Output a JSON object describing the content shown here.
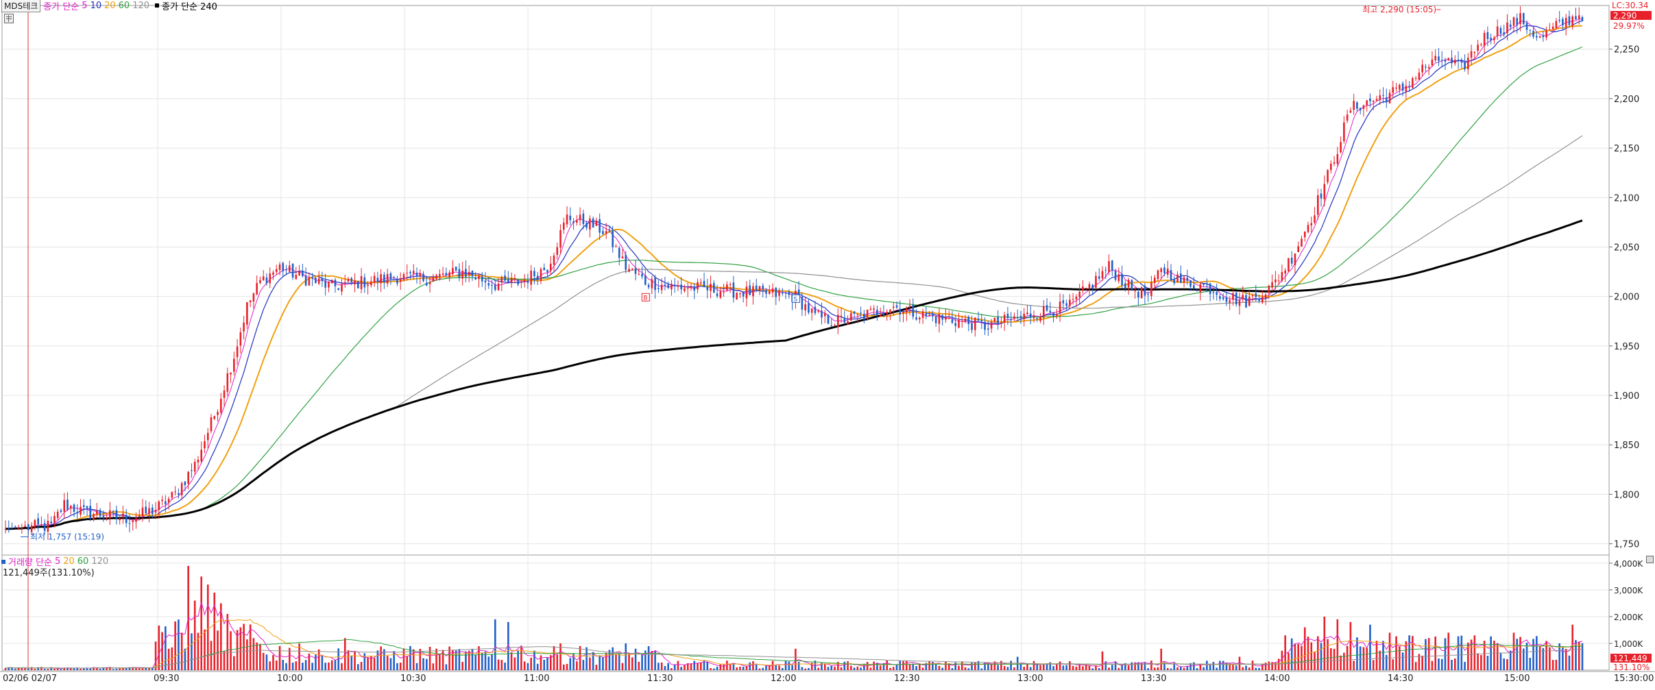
{
  "stock_name": "MDS테크",
  "price_legend": {
    "label": "종가 단순",
    "periods": [
      "5",
      "10",
      "20",
      "60",
      "120"
    ],
    "long_label": "종가 단순 240"
  },
  "volume_legend": {
    "label": "거래량 단순",
    "periods": [
      "5",
      "20",
      "60",
      "120"
    ],
    "current": "121,449주(131.10%)"
  },
  "top_right": {
    "lc": "LC:30.34",
    "price_badge": "2,290",
    "pct": "29.97%"
  },
  "annotations": {
    "high": "최고 2,290 (15:05)",
    "low": "최저 1,757 (15:19)",
    "marker_b": "B",
    "marker_s": "S"
  },
  "volume_right": {
    "badge": "121,449",
    "pct": "131.10%"
  },
  "colors": {
    "up": "#e8202a",
    "down": "#1f5fc8",
    "ma5": "#e020c8",
    "ma10": "#2030c0",
    "ma20": "#f0a010",
    "ma60": "#30a040",
    "ma120": "#909090",
    "ma240": "#000000"
  },
  "chart_data": [
    {
      "type": "candlestick",
      "title": "",
      "x": [
        "02/06 02/07",
        "09:30",
        "10:00",
        "10:30",
        "11:00",
        "11:30",
        "12:00",
        "12:30",
        "13:00",
        "13:30",
        "14:00",
        "14:30",
        "15:00",
        "15:30:00"
      ],
      "y_ticks": [
        "1,750",
        "1,800",
        "1,850",
        "1,900",
        "1,950",
        "2,000",
        "2,050",
        "2,100",
        "2,150",
        "2,200",
        "2,250"
      ],
      "ylim": [
        1740,
        2290
      ],
      "anchors": [
        [
          0,
          1765
        ],
        [
          14,
          1768
        ],
        [
          18,
          1790
        ],
        [
          24,
          1782
        ],
        [
          32,
          1778
        ],
        [
          38,
          1775
        ],
        [
          46,
          1785
        ],
        [
          52,
          1800
        ],
        [
          58,
          1830
        ],
        [
          64,
          1880
        ],
        [
          70,
          1940
        ],
        [
          74,
          1990
        ],
        [
          78,
          2015
        ],
        [
          84,
          2030
        ],
        [
          90,
          2020
        ],
        [
          100,
          2010
        ],
        [
          110,
          2015
        ],
        [
          120,
          2020
        ],
        [
          130,
          2018
        ],
        [
          140,
          2025
        ],
        [
          150,
          2012
        ],
        [
          158,
          2015
        ],
        [
          166,
          2030
        ],
        [
          172,
          2080
        ],
        [
          178,
          2075
        ],
        [
          184,
          2065
        ],
        [
          190,
          2030
        ],
        [
          196,
          2015
        ],
        [
          204,
          2010
        ],
        [
          214,
          2008
        ],
        [
          224,
          2005
        ],
        [
          234,
          2003
        ],
        [
          242,
          2000
        ],
        [
          248,
          1980
        ],
        [
          254,
          1975
        ],
        [
          262,
          1980
        ],
        [
          272,
          1990
        ],
        [
          282,
          1980
        ],
        [
          292,
          1975
        ],
        [
          300,
          1970
        ],
        [
          310,
          1978
        ],
        [
          318,
          1985
        ],
        [
          326,
          1990
        ],
        [
          332,
          2010
        ],
        [
          338,
          2030
        ],
        [
          344,
          2010
        ],
        [
          350,
          2000
        ],
        [
          354,
          2030
        ],
        [
          360,
          2015
        ],
        [
          368,
          2010
        ],
        [
          374,
          2000
        ],
        [
          380,
          1995
        ],
        [
          388,
          2010
        ],
        [
          394,
          2040
        ],
        [
          400,
          2080
        ],
        [
          406,
          2130
        ],
        [
          412,
          2190
        ],
        [
          420,
          2200
        ],
        [
          428,
          2210
        ],
        [
          434,
          2230
        ],
        [
          440,
          2240
        ],
        [
          446,
          2230
        ],
        [
          452,
          2260
        ],
        [
          458,
          2270
        ],
        [
          464,
          2280
        ],
        [
          470,
          2260
        ],
        [
          476,
          2275
        ],
        [
          482,
          2285
        ]
      ],
      "moving_averages": [
        {
          "name": "5",
          "period": 5
        },
        {
          "name": "10",
          "period": 10
        },
        {
          "name": "20",
          "period": 20
        },
        {
          "name": "60",
          "period": 60
        },
        {
          "name": "120",
          "period": 120
        },
        {
          "name": "240",
          "period": 240
        }
      ],
      "high": 2290,
      "low": 1757
    },
    {
      "type": "bar",
      "title": "",
      "y_ticks": [
        "1,000K",
        "2,000K",
        "3,000K",
        "4,000K"
      ],
      "ylim": [
        0,
        4100
      ],
      "spikes": [
        [
          50,
          800
        ],
        [
          54,
          1400
        ],
        [
          56,
          3900
        ],
        [
          58,
          2600
        ],
        [
          60,
          3500
        ],
        [
          62,
          3200
        ],
        [
          64,
          2900
        ],
        [
          66,
          2500
        ],
        [
          68,
          2100
        ],
        [
          72,
          1600
        ],
        [
          76,
          1200
        ],
        [
          84,
          900
        ],
        [
          90,
          1000
        ],
        [
          104,
          1200
        ],
        [
          124,
          900
        ],
        [
          150,
          1900
        ],
        [
          154,
          1800
        ],
        [
          158,
          900
        ],
        [
          170,
          1000
        ],
        [
          176,
          900
        ],
        [
          190,
          1000
        ],
        [
          242,
          800
        ],
        [
          310,
          500
        ],
        [
          336,
          700
        ],
        [
          354,
          800
        ],
        [
          378,
          500
        ],
        [
          392,
          1300
        ],
        [
          398,
          1600
        ],
        [
          404,
          2000
        ],
        [
          408,
          1900
        ],
        [
          412,
          1800
        ],
        [
          418,
          1700
        ],
        [
          424,
          1400
        ],
        [
          430,
          1300
        ],
        [
          436,
          1200
        ],
        [
          442,
          1400
        ],
        [
          450,
          1300
        ],
        [
          456,
          1100
        ],
        [
          462,
          1400
        ],
        [
          470,
          900
        ],
        [
          476,
          1000
        ],
        [
          480,
          1700
        ]
      ]
    }
  ]
}
